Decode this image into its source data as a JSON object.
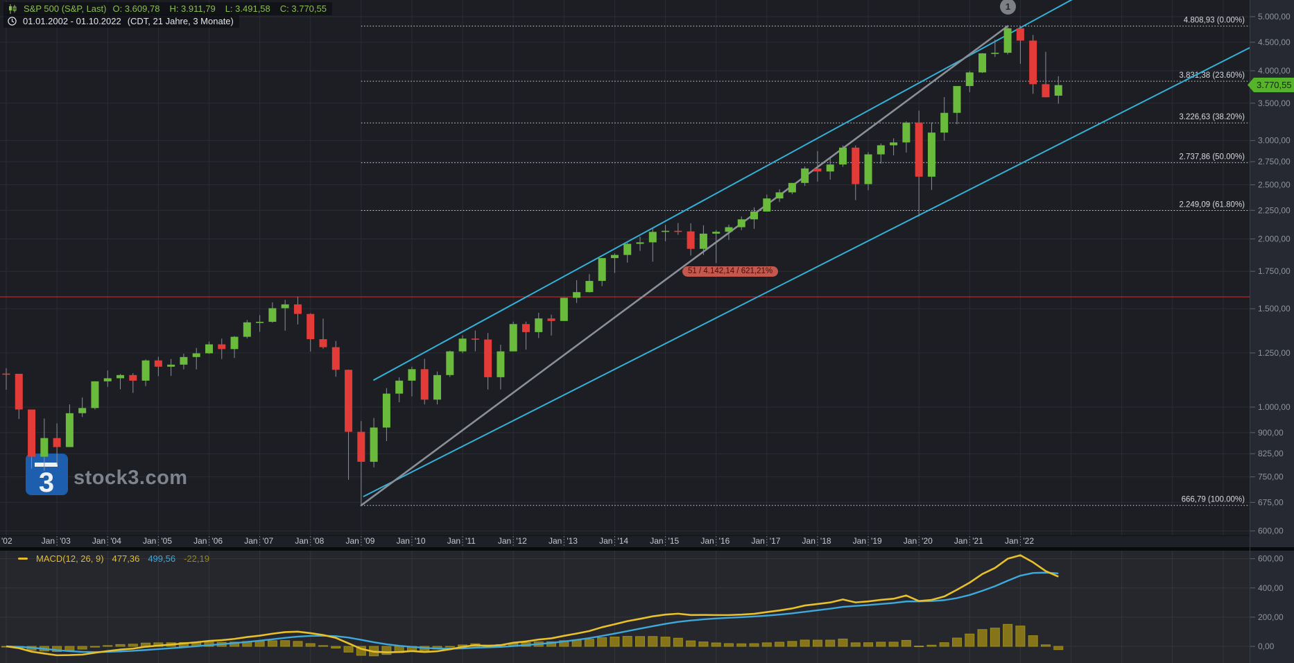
{
  "header": {
    "symbol": "S&P 500 (S&P, Last)",
    "open": "O: 3.609,78",
    "high": "H: 3.911,79",
    "low": "L: 3.491,58",
    "close": "C: 3.770,55",
    "date_range": "01.01.2002 - 01.10.2022",
    "period": "(CDT, 21 Jahre, 3 Monate)",
    "text_color": "#8cbe52"
  },
  "watermark": {
    "glyph": "3",
    "site": "stock3.com",
    "square_color": "#1d5fae",
    "text_color": "#7e848d"
  },
  "annotations": {
    "wave_marker": "1",
    "measure_label": "51 / 4.142,14 / 621,21%",
    "red_line_price": 1575,
    "red_line_color": "#c22a2c",
    "fib": {
      "x_start_index": 28,
      "line_color": "#d9dcdf",
      "levels": [
        {
          "price": 4808.93,
          "label": "4.808,93 (0.00%)"
        },
        {
          "price": 3831.38,
          "label": "3.831,38 (23.60%)"
        },
        {
          "price": 3226.63,
          "label": "3.226,63 (38.20%)"
        },
        {
          "price": 2737.86,
          "label": "2.737,86 (50.00%)"
        },
        {
          "price": 2249.09,
          "label": "2.249,09 (61.80%)"
        },
        {
          "price": 666.79,
          "label": "666,79 (100.00%)"
        }
      ]
    },
    "trendlines": [
      {
        "name": "channel-upper-trendline",
        "color": "#35b0d6",
        "w": 2,
        "a": [
          29,
          1118
        ],
        "b": [
          84.5,
          5430
        ]
      },
      {
        "name": "channel-lower-trendline",
        "color": "#35b0d6",
        "w": 2,
        "a": [
          28.2,
          692
        ],
        "b": [
          98.2,
          4411
        ]
      },
      {
        "name": "fib-base-trendline",
        "color": "#8a9097",
        "w": 2.6,
        "a": [
          28,
          666.79
        ],
        "b": [
          79,
          4808.93
        ]
      }
    ]
  },
  "price_axis": {
    "last_price": "3.770,55",
    "last_price_value": 3770.55,
    "badge_color": "#55b42a",
    "ticks": [
      {
        "v": 5000,
        "t": "5.000,00"
      },
      {
        "v": 4500,
        "t": "4.500,00"
      },
      {
        "v": 4000,
        "t": "4.000,00"
      },
      {
        "v": 3500,
        "t": "3.500,00"
      },
      {
        "v": 3000,
        "t": "3.000,00"
      },
      {
        "v": 2750,
        "t": "2.750,00"
      },
      {
        "v": 2500,
        "t": "2.500,00"
      },
      {
        "v": 2250,
        "t": "2.250,00"
      },
      {
        "v": 2000,
        "t": "2.000,00"
      },
      {
        "v": 1750,
        "t": "1.750,00"
      },
      {
        "v": 1500,
        "t": "1.500,00"
      },
      {
        "v": 1250,
        "t": "1.250,00"
      },
      {
        "v": 1000,
        "t": "1.000,00"
      },
      {
        "v": 900,
        "t": "900,00"
      },
      {
        "v": 825,
        "t": "825,00"
      },
      {
        "v": 750,
        "t": "750,00"
      },
      {
        "v": 675,
        "t": "675,00"
      },
      {
        "v": 600,
        "t": "600,00"
      }
    ]
  },
  "time_axis": {
    "first_label": "'02",
    "month": "Jan",
    "years": [
      "'03",
      "'04",
      "'05",
      "'06",
      "'07",
      "'08",
      "'09",
      "'10",
      "'11",
      "'12",
      "'13",
      "'14",
      "'15",
      "'16",
      "'17",
      "'18",
      "'19",
      "'20",
      "'21",
      "'22"
    ]
  },
  "macd": {
    "title": "MACD(12, 26, 9)",
    "values": {
      "macd": "477,36",
      "signal": "499,56",
      "hist": "-22,19"
    },
    "numeric": {
      "macd": 477.36,
      "signal": 499.56,
      "hist": -22.19
    },
    "colors": {
      "macd": "#e8c02c",
      "signal": "#3ea9da",
      "hist_fill": "#857418",
      "hist_stroke": "#9e8c1d"
    },
    "ticks": [
      {
        "v": 600,
        "t": "600,00"
      },
      {
        "v": 400,
        "t": "400,00"
      },
      {
        "v": 200,
        "t": "200,00"
      },
      {
        "v": 0,
        "t": "0,00"
      }
    ]
  },
  "chart_data": {
    "type": "candlestick",
    "title": "S&P 500 (S&P, Last)",
    "interval": "quarterly",
    "x_start": "2002-Q1",
    "x_end": "2022-Q4",
    "y_scale": "log",
    "ylim": [
      589,
      5357
    ],
    "up_color": "#6aba3c",
    "down_color": "#e23b38",
    "wick_color": "#8b9097",
    "ohlc": [
      [
        1148,
        1174,
        1074,
        1147
      ],
      [
        1147,
        1147,
        952,
        990
      ],
      [
        990,
        990,
        776,
        815
      ],
      [
        815,
        954,
        769,
        880
      ],
      [
        880,
        935,
        789,
        848
      ],
      [
        848,
        1011,
        848,
        975
      ],
      [
        975,
        1040,
        960,
        996
      ],
      [
        996,
        1112,
        990,
        1112
      ],
      [
        1112,
        1163,
        1087,
        1126
      ],
      [
        1126,
        1146,
        1076,
        1141
      ],
      [
        1141,
        1150,
        1060,
        1115
      ],
      [
        1115,
        1217,
        1090,
        1212
      ],
      [
        1212,
        1230,
        1136,
        1181
      ],
      [
        1181,
        1219,
        1137,
        1191
      ],
      [
        1191,
        1246,
        1168,
        1229
      ],
      [
        1229,
        1276,
        1168,
        1248
      ],
      [
        1248,
        1310,
        1245,
        1295
      ],
      [
        1295,
        1326,
        1219,
        1270
      ],
      [
        1270,
        1340,
        1224,
        1336
      ],
      [
        1336,
        1432,
        1327,
        1418
      ],
      [
        1418,
        1461,
        1364,
        1421
      ],
      [
        1421,
        1540,
        1416,
        1503
      ],
      [
        1503,
        1556,
        1370,
        1527
      ],
      [
        1527,
        1576,
        1406,
        1468
      ],
      [
        1468,
        1472,
        1257,
        1323
      ],
      [
        1323,
        1440,
        1272,
        1280
      ],
      [
        1280,
        1313,
        1133,
        1166
      ],
      [
        1166,
        1167,
        741,
        903
      ],
      [
        903,
        944,
        667,
        798
      ],
      [
        798,
        956,
        780,
        919
      ],
      [
        919,
        1081,
        869,
        1057
      ],
      [
        1057,
        1130,
        1020,
        1115
      ],
      [
        1115,
        1181,
        1045,
        1169
      ],
      [
        1169,
        1220,
        1011,
        1031
      ],
      [
        1031,
        1158,
        1011,
        1141
      ],
      [
        1141,
        1262,
        1132,
        1258
      ],
      [
        1258,
        1344,
        1249,
        1326
      ],
      [
        1326,
        1371,
        1258,
        1321
      ],
      [
        1321,
        1357,
        1075,
        1131
      ],
      [
        1131,
        1293,
        1075,
        1258
      ],
      [
        1258,
        1422,
        1258,
        1408
      ],
      [
        1408,
        1422,
        1267,
        1362
      ],
      [
        1362,
        1475,
        1329,
        1441
      ],
      [
        1441,
        1464,
        1343,
        1426
      ],
      [
        1426,
        1570,
        1426,
        1569
      ],
      [
        1569,
        1687,
        1536,
        1606
      ],
      [
        1606,
        1730,
        1604,
        1682
      ],
      [
        1682,
        1849,
        1646,
        1848
      ],
      [
        1848,
        1884,
        1738,
        1872
      ],
      [
        1872,
        1968,
        1814,
        1960
      ],
      [
        1960,
        2019,
        1904,
        1972
      ],
      [
        1972,
        2093,
        1821,
        2059
      ],
      [
        2059,
        2119,
        1981,
        2068
      ],
      [
        2068,
        2135,
        2034,
        2063
      ],
      [
        2063,
        2133,
        1867,
        1920
      ],
      [
        1920,
        2116,
        1872,
        2044
      ],
      [
        2044,
        2075,
        1810,
        2060
      ],
      [
        2060,
        2121,
        1992,
        2099
      ],
      [
        2099,
        2194,
        2074,
        2168
      ],
      [
        2168,
        2278,
        2084,
        2239
      ],
      [
        2239,
        2401,
        2239,
        2363
      ],
      [
        2363,
        2454,
        2329,
        2423
      ],
      [
        2423,
        2519,
        2405,
        2519
      ],
      [
        2519,
        2695,
        2488,
        2674
      ],
      [
        2674,
        2873,
        2533,
        2641
      ],
      [
        2641,
        2791,
        2554,
        2718
      ],
      [
        2718,
        2941,
        2692,
        2914
      ],
      [
        2914,
        2940,
        2347,
        2507
      ],
      [
        2507,
        2860,
        2444,
        2834
      ],
      [
        2834,
        2964,
        2729,
        2942
      ],
      [
        2942,
        3028,
        2822,
        2977
      ],
      [
        2977,
        3248,
        2856,
        3231
      ],
      [
        3231,
        3394,
        2192,
        2585
      ],
      [
        2585,
        3233,
        2448,
        3100
      ],
      [
        3100,
        3588,
        2999,
        3363
      ],
      [
        3363,
        3757,
        3209,
        3756
      ],
      [
        3756,
        3994,
        3663,
        3973
      ],
      [
        3973,
        4302,
        3964,
        4298
      ],
      [
        4298,
        4546,
        4234,
        4308
      ],
      [
        4308,
        4808.93,
        4279,
        4766
      ],
      [
        4766,
        4818.62,
        4115,
        4530
      ],
      [
        4530,
        4637,
        3637,
        3785
      ],
      [
        3785,
        4325,
        3585,
        3586
      ],
      [
        3609.78,
        3911.79,
        3491.58,
        3770.55
      ]
    ],
    "indicators": [
      {
        "type": "MACD",
        "params": [
          12,
          26,
          9
        ],
        "panel_ylim": [
          -114,
          655
        ],
        "last": {
          "macd": 477.36,
          "signal": 499.56,
          "hist": -22.19
        }
      }
    ]
  }
}
